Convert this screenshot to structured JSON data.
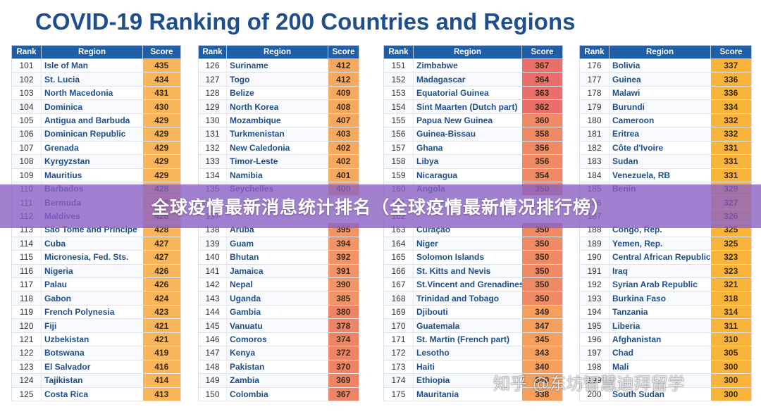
{
  "title": "COVID-19 Ranking of 200 Countries and Regions",
  "banner": "全球疫情最新消息统计排名（全球疫情最新情况排行榜）",
  "watermark": "知乎 @东坊智慧迪拜留学",
  "headers": {
    "rank": "Rank",
    "region": "Region",
    "score": "Score"
  },
  "columns": [
    {
      "rows": [
        {
          "rank": "101",
          "region": "Isle of Man",
          "score": "435"
        },
        {
          "rank": "102",
          "region": "St. Lucia",
          "score": "434"
        },
        {
          "rank": "103",
          "region": "North Macedonia",
          "score": "431"
        },
        {
          "rank": "104",
          "region": "Dominica",
          "score": "430"
        },
        {
          "rank": "105",
          "region": "Antigua and Barbuda",
          "score": "429"
        },
        {
          "rank": "106",
          "region": "Dominican Republic",
          "score": "429"
        },
        {
          "rank": "107",
          "region": "Grenada",
          "score": "429"
        },
        {
          "rank": "108",
          "region": "Kyrgyzstan",
          "score": "429"
        },
        {
          "rank": "109",
          "region": "Mauritius",
          "score": "429"
        },
        {
          "rank": "110",
          "region": "Barbados",
          "score": "428"
        },
        {
          "rank": "111",
          "region": "Bermuda",
          "score": "428"
        },
        {
          "rank": "112",
          "region": "Maldives",
          "score": "428"
        },
        {
          "rank": "113",
          "region": "São Tomé and Príncipe",
          "score": "428"
        },
        {
          "rank": "114",
          "region": "Cuba",
          "score": "427"
        },
        {
          "rank": "115",
          "region": "Micronesia, Fed. Sts.",
          "score": "427"
        },
        {
          "rank": "116",
          "region": "Nigeria",
          "score": "426"
        },
        {
          "rank": "117",
          "region": "Palau",
          "score": "426"
        },
        {
          "rank": "118",
          "region": "Gabon",
          "score": "424"
        },
        {
          "rank": "119",
          "region": "French Polynesia",
          "score": "423"
        },
        {
          "rank": "120",
          "region": "Fiji",
          "score": "421"
        },
        {
          "rank": "121",
          "region": "Uzbekistan",
          "score": "421"
        },
        {
          "rank": "122",
          "region": "Botswana",
          "score": "419"
        },
        {
          "rank": "123",
          "region": "El Salvador",
          "score": "416"
        },
        {
          "rank": "124",
          "region": "Tajikistan",
          "score": "414"
        },
        {
          "rank": "125",
          "region": "Costa Rica",
          "score": "413"
        }
      ]
    },
    {
      "rows": [
        {
          "rank": "126",
          "region": "Suriname",
          "score": "412"
        },
        {
          "rank": "127",
          "region": "Togo",
          "score": "412"
        },
        {
          "rank": "128",
          "region": "Belize",
          "score": "409"
        },
        {
          "rank": "129",
          "region": "North Korea",
          "score": "408"
        },
        {
          "rank": "130",
          "region": "Mozambique",
          "score": "407"
        },
        {
          "rank": "131",
          "region": "Turkmenistan",
          "score": "403"
        },
        {
          "rank": "132",
          "region": "New Caledonia",
          "score": "402"
        },
        {
          "rank": "133",
          "region": "Timor-Leste",
          "score": "402"
        },
        {
          "rank": "134",
          "region": "Namibia",
          "score": "401"
        },
        {
          "rank": "135",
          "region": "Seychelles",
          "score": "400"
        },
        {
          "rank": "136",
          "region": "",
          "score": ""
        },
        {
          "rank": "137",
          "region": "",
          "score": ""
        },
        {
          "rank": "138",
          "region": "Aruba",
          "score": "395"
        },
        {
          "rank": "139",
          "region": "Guam",
          "score": "394"
        },
        {
          "rank": "140",
          "region": "Bhutan",
          "score": "392"
        },
        {
          "rank": "141",
          "region": "Jamaica",
          "score": "391"
        },
        {
          "rank": "142",
          "region": "Nepal",
          "score": "390"
        },
        {
          "rank": "143",
          "region": "Uganda",
          "score": "385"
        },
        {
          "rank": "144",
          "region": "Gambia",
          "score": "380"
        },
        {
          "rank": "145",
          "region": "Vanuatu",
          "score": "378"
        },
        {
          "rank": "146",
          "region": "Comoros",
          "score": "374"
        },
        {
          "rank": "147",
          "region": "Kenya",
          "score": "372"
        },
        {
          "rank": "148",
          "region": "Pakistan",
          "score": "370"
        },
        {
          "rank": "149",
          "region": "Zambia",
          "score": "369"
        },
        {
          "rank": "150",
          "region": "Colombia",
          "score": "367"
        }
      ]
    },
    {
      "rows": [
        {
          "rank": "151",
          "region": "Zimbabwe",
          "score": "367"
        },
        {
          "rank": "152",
          "region": "Madagascar",
          "score": "364"
        },
        {
          "rank": "153",
          "region": "Equatorial Guinea",
          "score": "363"
        },
        {
          "rank": "154",
          "region": "Sint Maarten (Dutch part)",
          "score": "362"
        },
        {
          "rank": "155",
          "region": "Papua New Guinea",
          "score": "360"
        },
        {
          "rank": "156",
          "region": "Guinea-Bissau",
          "score": "358"
        },
        {
          "rank": "157",
          "region": "Ghana",
          "score": "356"
        },
        {
          "rank": "158",
          "region": "Libya",
          "score": "356"
        },
        {
          "rank": "159",
          "region": "Nicaragua",
          "score": "354"
        },
        {
          "rank": "160",
          "region": "Angola",
          "score": "350"
        },
        {
          "rank": "161",
          "region": "",
          "score": ""
        },
        {
          "rank": "162",
          "region": "",
          "score": ""
        },
        {
          "rank": "163",
          "region": "Curaçao",
          "score": "350"
        },
        {
          "rank": "164",
          "region": "Niger",
          "score": "350"
        },
        {
          "rank": "165",
          "region": "Solomon Islands",
          "score": "350"
        },
        {
          "rank": "166",
          "region": "St. Kitts and Nevis",
          "score": "350"
        },
        {
          "rank": "167",
          "region": "St.Vincent and Grenadines",
          "score": "350"
        },
        {
          "rank": "168",
          "region": "Trinidad and Tobago",
          "score": "350"
        },
        {
          "rank": "169",
          "region": "Djibouti",
          "score": "349"
        },
        {
          "rank": "170",
          "region": "Guatemala",
          "score": "347"
        },
        {
          "rank": "171",
          "region": "St. Martin (French part)",
          "score": "345"
        },
        {
          "rank": "172",
          "region": "Lesotho",
          "score": "343"
        },
        {
          "rank": "173",
          "region": "Haiti",
          "score": "340"
        },
        {
          "rank": "174",
          "region": "Ethiopia",
          "score": "340"
        },
        {
          "rank": "175",
          "region": "Mauritania",
          "score": "338"
        }
      ]
    },
    {
      "rows": [
        {
          "rank": "176",
          "region": "Bolivia",
          "score": "337"
        },
        {
          "rank": "177",
          "region": "Guinea",
          "score": "336"
        },
        {
          "rank": "178",
          "region": "Malawi",
          "score": "336"
        },
        {
          "rank": "179",
          "region": "Burundi",
          "score": "334"
        },
        {
          "rank": "180",
          "region": "Cameroon",
          "score": "332"
        },
        {
          "rank": "181",
          "region": "Eritrea",
          "score": "332"
        },
        {
          "rank": "182",
          "region": "Côte d'Ivoire",
          "score": "331"
        },
        {
          "rank": "183",
          "region": "Sudan",
          "score": "331"
        },
        {
          "rank": "184",
          "region": "Venezuela, RB",
          "score": "331"
        },
        {
          "rank": "185",
          "region": "Benin",
          "score": "329"
        },
        {
          "rank": "186",
          "region": "",
          "score": "327"
        },
        {
          "rank": "187",
          "region": "",
          "score": "326"
        },
        {
          "rank": "188",
          "region": "Congo, Rep.",
          "score": "325"
        },
        {
          "rank": "189",
          "region": "Yemen, Rep.",
          "score": "325"
        },
        {
          "rank": "190",
          "region": "Central African Republic",
          "score": "323"
        },
        {
          "rank": "191",
          "region": "Iraq",
          "score": "323"
        },
        {
          "rank": "192",
          "region": "Syrian Arab Republic",
          "score": "321"
        },
        {
          "rank": "193",
          "region": "Burkina Faso",
          "score": "318"
        },
        {
          "rank": "194",
          "region": "Tanzania",
          "score": "314"
        },
        {
          "rank": "195",
          "region": "Liberia",
          "score": "311"
        },
        {
          "rank": "196",
          "region": "Afghanistan",
          "score": "310"
        },
        {
          "rank": "197",
          "region": "Chad",
          "score": "305"
        },
        {
          "rank": "198",
          "region": "Mali",
          "score": "300"
        },
        {
          "rank": "199",
          "region": "",
          "score": "300"
        },
        {
          "rank": "200",
          "region": "South Sudan",
          "score": "300"
        }
      ]
    }
  ]
}
